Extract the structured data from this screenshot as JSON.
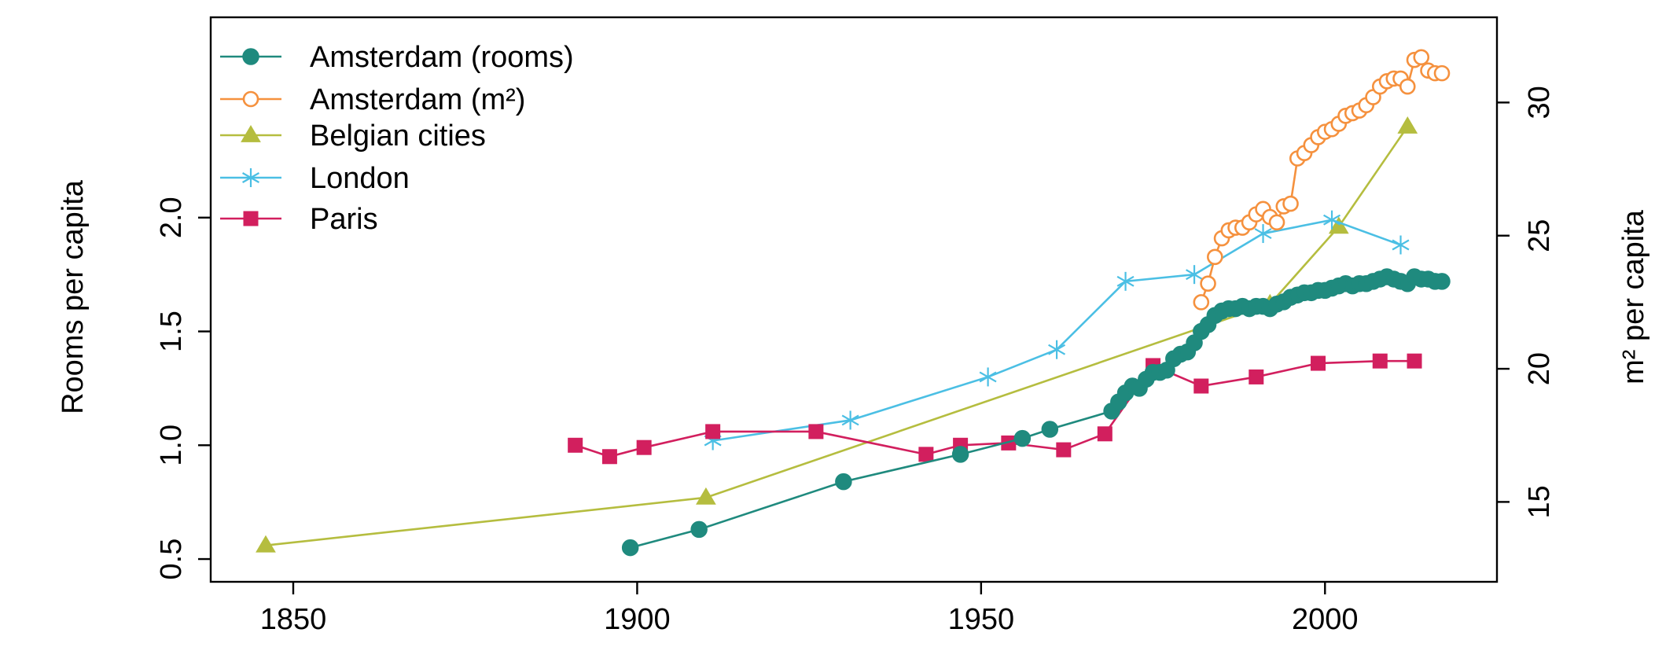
{
  "chart_data": {
    "type": "line",
    "title": "",
    "xlabel": "",
    "ylabel": "Rooms per capita",
    "y2label": "m² per capita",
    "xlim": [
      1838,
      2025
    ],
    "ylim": [
      0.4,
      2.88
    ],
    "y2lim": [
      12.0,
      33.2
    ],
    "xticks": [
      1850,
      1900,
      1950,
      2000
    ],
    "yticks": [
      0.5,
      1.0,
      1.5,
      2.0
    ],
    "y2ticks": [
      15,
      20,
      25,
      30
    ],
    "grid": false,
    "legend_position": "top-left",
    "series": [
      {
        "name": "Amsterdam (rooms)",
        "axis": "left",
        "color": "#1f8a7e",
        "marker": "filled-circle",
        "x": [
          1899,
          1909,
          1930,
          1947,
          1956,
          1960,
          1969,
          1970,
          1971,
          1972,
          1973,
          1974,
          1975,
          1976,
          1977,
          1978,
          1979,
          1980,
          1981,
          1982,
          1983,
          1984,
          1985,
          1986,
          1987,
          1988,
          1989,
          1990,
          1991,
          1992,
          1993,
          1994,
          1995,
          1996,
          1997,
          1998,
          1999,
          2000,
          2001,
          2002,
          2003,
          2004,
          2005,
          2006,
          2007,
          2008,
          2009,
          2010,
          2011,
          2012,
          2013,
          2014,
          2015,
          2016,
          2017
        ],
        "y": [
          0.55,
          0.63,
          0.84,
          0.96,
          1.03,
          1.07,
          1.15,
          1.19,
          1.23,
          1.26,
          1.25,
          1.29,
          1.32,
          1.32,
          1.33,
          1.38,
          1.4,
          1.41,
          1.45,
          1.5,
          1.53,
          1.57,
          1.59,
          1.6,
          1.6,
          1.61,
          1.6,
          1.61,
          1.61,
          1.6,
          1.62,
          1.63,
          1.65,
          1.66,
          1.67,
          1.67,
          1.68,
          1.68,
          1.69,
          1.7,
          1.71,
          1.7,
          1.71,
          1.71,
          1.72,
          1.73,
          1.74,
          1.73,
          1.72,
          1.71,
          1.74,
          1.73,
          1.73,
          1.72,
          1.72
        ]
      },
      {
        "name": "Amsterdam (m²)",
        "axis": "right",
        "color": "#f5913e",
        "marker": "open-circle",
        "x": [
          1982,
          1983,
          1984,
          1985,
          1986,
          1987,
          1988,
          1989,
          1990,
          1991,
          1992,
          1993,
          1994,
          1995,
          1996,
          1997,
          1998,
          1999,
          2000,
          2001,
          2002,
          2003,
          2004,
          2005,
          2006,
          2007,
          2008,
          2009,
          2010,
          2011,
          2012,
          2013,
          2014,
          2015,
          2016,
          2017
        ],
        "y": [
          22.5,
          23.2,
          24.2,
          24.9,
          25.2,
          25.3,
          25.3,
          25.5,
          25.8,
          26.0,
          25.7,
          25.5,
          26.1,
          26.2,
          27.9,
          28.1,
          28.4,
          28.7,
          28.9,
          29.0,
          29.2,
          29.5,
          29.6,
          29.7,
          29.9,
          30.2,
          30.6,
          30.8,
          30.9,
          30.9,
          30.6,
          31.6,
          31.7,
          31.2,
          31.1,
          31.1
        ]
      },
      {
        "name": "Belgian cities",
        "axis": "left",
        "color": "#b5bd3f",
        "marker": "filled-triangle",
        "x": [
          1846,
          1910,
          1992,
          2002,
          2012
        ],
        "y": [
          0.56,
          0.77,
          1.62,
          1.96,
          2.4
        ]
      },
      {
        "name": "London",
        "axis": "left",
        "color": "#4bbfe4",
        "marker": "asterisk",
        "x": [
          1911,
          1931,
          1951,
          1961,
          1971,
          1981,
          1991,
          2001,
          2011
        ],
        "y": [
          1.02,
          1.11,
          1.3,
          1.42,
          1.72,
          1.75,
          1.93,
          1.99,
          1.88
        ]
      },
      {
        "name": "Paris",
        "axis": "left",
        "color": "#d21f5e",
        "marker": "filled-square",
        "x": [
          1891,
          1896,
          1901,
          1911,
          1926,
          1942,
          1947,
          1954,
          1962,
          1968,
          1975,
          1982,
          1990,
          1999,
          2008,
          2013
        ],
        "y": [
          1.0,
          0.95,
          0.99,
          1.06,
          1.06,
          0.96,
          1.0,
          1.01,
          0.98,
          1.05,
          1.35,
          1.26,
          1.3,
          1.36,
          1.37,
          1.37
        ]
      }
    ]
  }
}
